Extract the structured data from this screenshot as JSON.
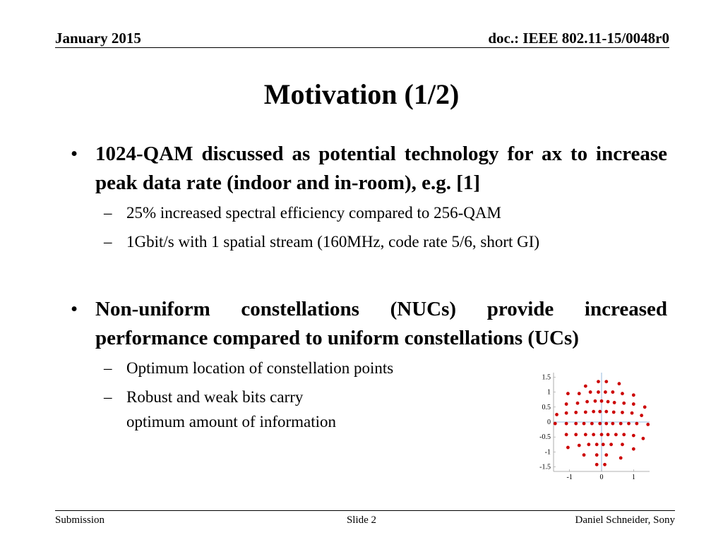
{
  "header": {
    "date": "January 2015",
    "doc": "doc.: IEEE 802.11-15/0048r0"
  },
  "title": "Motivation (1/2)",
  "bullets": [
    {
      "text": "1024-QAM discussed as potential technology for ax to increase peak data rate (indoor and in-room), e.g. [1]",
      "subs": [
        "25% increased spectral efficiency compared to 256-QAM",
        "1Gbit/s with 1 spatial stream (160MHz, code rate 5/6, short GI)"
      ]
    },
    {
      "text": "Non-uniform constellations (NUCs) provide increased performance compared to uniform constellations (UCs)",
      "subs": [
        "Optimum location of constellation points",
        "Robust and weak bits carry",
        "optimum amount of information"
      ]
    }
  ],
  "footer": {
    "left": "Submission",
    "center": "Slide 2",
    "right": "Daniel Schneider, Sony"
  },
  "chart_data": {
    "type": "scatter",
    "title": "",
    "xlabel": "",
    "ylabel": "",
    "xlim": [
      -1.5,
      1.5
    ],
    "ylim": [
      -1.65,
      1.65
    ],
    "xticks": [
      "-1",
      "0",
      "1"
    ],
    "yticks": [
      "1.5",
      "1",
      "0.5",
      "0",
      "-0.5",
      "-1",
      "-1.5"
    ],
    "marker_color": "#cc0000",
    "point_labels_note": "tiny point index labels unreadable",
    "points": [
      [
        -0.5,
        1.2
      ],
      [
        -0.1,
        1.35
      ],
      [
        0.15,
        1.35
      ],
      [
        0.55,
        1.28
      ],
      [
        -1.05,
        0.95
      ],
      [
        -0.7,
        0.95
      ],
      [
        -0.35,
        1.0
      ],
      [
        -0.1,
        1.0
      ],
      [
        0.12,
        1.0
      ],
      [
        0.35,
        1.0
      ],
      [
        0.65,
        0.95
      ],
      [
        1.0,
        0.9
      ],
      [
        -1.1,
        0.6
      ],
      [
        -0.75,
        0.63
      ],
      [
        -0.45,
        0.68
      ],
      [
        -0.2,
        0.7
      ],
      [
        0.0,
        0.7
      ],
      [
        0.2,
        0.68
      ],
      [
        0.4,
        0.65
      ],
      [
        0.7,
        0.63
      ],
      [
        1.0,
        0.6
      ],
      [
        1.35,
        0.5
      ],
      [
        -1.4,
        0.25
      ],
      [
        -1.1,
        0.3
      ],
      [
        -0.8,
        0.32
      ],
      [
        -0.5,
        0.33
      ],
      [
        -0.25,
        0.35
      ],
      [
        -0.05,
        0.35
      ],
      [
        0.15,
        0.35
      ],
      [
        0.38,
        0.33
      ],
      [
        0.65,
        0.32
      ],
      [
        0.95,
        0.3
      ],
      [
        1.25,
        0.22
      ],
      [
        -1.45,
        -0.05
      ],
      [
        -1.1,
        -0.05
      ],
      [
        -0.8,
        -0.05
      ],
      [
        -0.55,
        -0.05
      ],
      [
        -0.3,
        -0.05
      ],
      [
        -0.05,
        -0.05
      ],
      [
        0.15,
        -0.05
      ],
      [
        0.35,
        -0.05
      ],
      [
        0.6,
        -0.05
      ],
      [
        0.85,
        -0.05
      ],
      [
        1.1,
        -0.05
      ],
      [
        1.45,
        -0.08
      ],
      [
        -1.1,
        -0.42
      ],
      [
        -0.8,
        -0.42
      ],
      [
        -0.5,
        -0.42
      ],
      [
        -0.25,
        -0.42
      ],
      [
        0.0,
        -0.42
      ],
      [
        0.2,
        -0.42
      ],
      [
        0.45,
        -0.42
      ],
      [
        0.7,
        -0.42
      ],
      [
        1.0,
        -0.45
      ],
      [
        1.3,
        -0.55
      ],
      [
        -1.05,
        -0.85
      ],
      [
        -0.7,
        -0.78
      ],
      [
        -0.4,
        -0.75
      ],
      [
        -0.15,
        -0.75
      ],
      [
        0.05,
        -0.75
      ],
      [
        0.3,
        -0.75
      ],
      [
        0.65,
        -0.75
      ],
      [
        1.0,
        -0.9
      ],
      [
        -0.55,
        -1.1
      ],
      [
        -0.15,
        -1.1
      ],
      [
        0.15,
        -1.1
      ],
      [
        0.6,
        -1.2
      ],
      [
        -0.15,
        -1.42
      ],
      [
        0.1,
        -1.42
      ]
    ]
  }
}
